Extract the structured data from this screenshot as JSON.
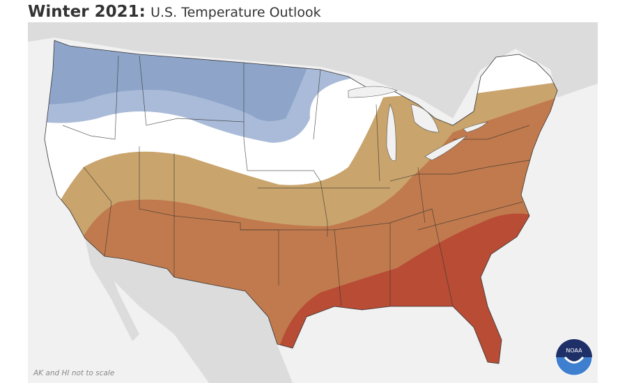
{
  "title": {
    "bold": "Winter 2021:",
    "rest": "U.S. Temperature Outlook"
  },
  "note": "AK and HI not to scale",
  "logo": {
    "text": "NOAA"
  },
  "colors": {
    "ocean": "#f1f1f1",
    "land": "#dcdcdc",
    "below_normal_dark": "#8ea5c9",
    "below_normal_light": "#a9bbd8",
    "equal_chances": "#ffffff",
    "above_normal_low": "#c9a46c",
    "above_normal_mid": "#c17a4d",
    "above_normal_high": "#b84c35"
  }
}
